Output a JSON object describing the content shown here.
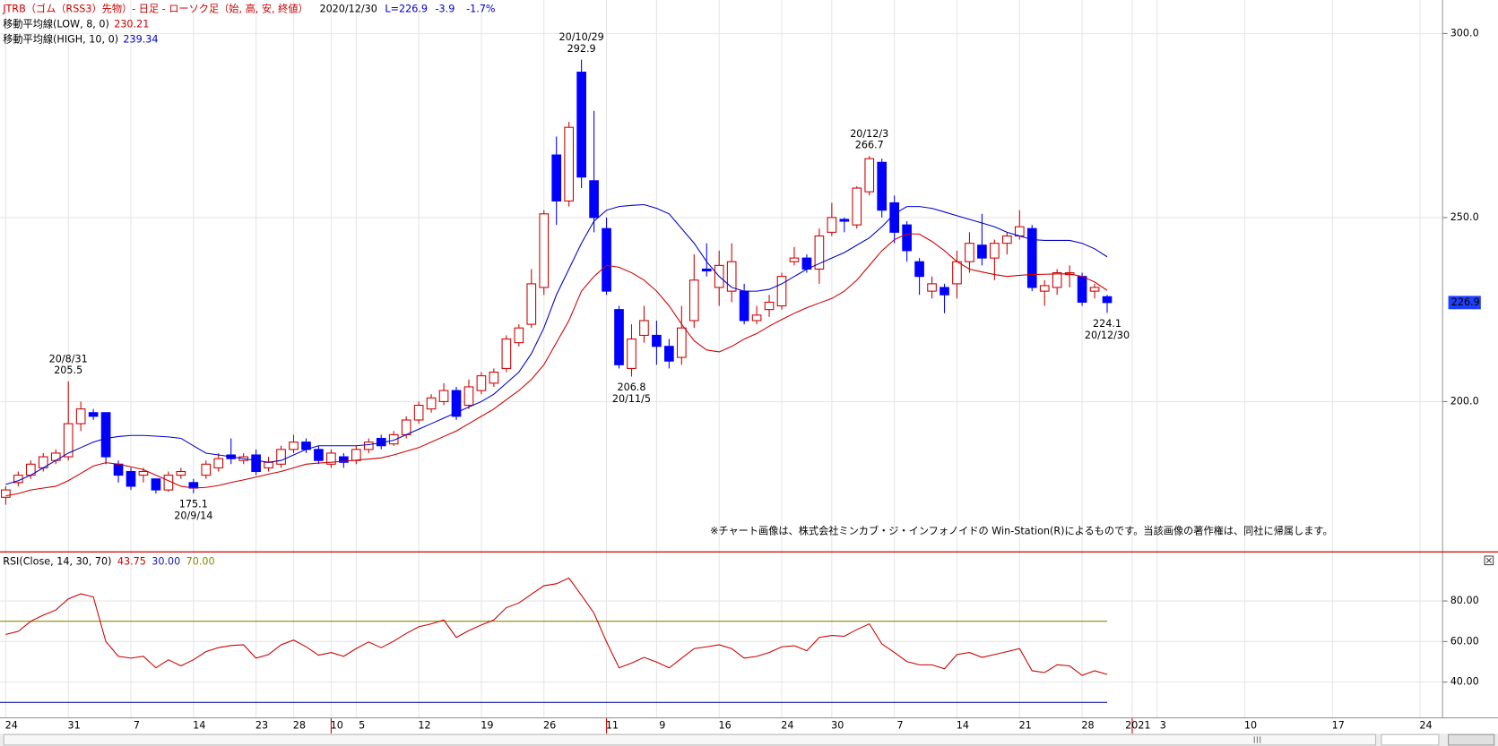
{
  "chart_data": [
    {
      "type": "candlestick",
      "title": "JTRB（ゴム（RSS3）先物）- 日足 - ローソク足（始, 高, 安, 終値）",
      "date": "2020/12/30",
      "last_label": "L=226.9",
      "change": "-3.9",
      "change_pct": "-1.7%",
      "copyright": "※チャート画像は、株式会社ミンカブ・ジ・インフォノイドの Win-Station(R)によるものです。当該画像の著作権は、同社に帰属します。",
      "xlim": [
        -0.458,
        114.8
      ],
      "xticks": [
        {
          "value": 0,
          "label": "24"
        },
        {
          "value": 5,
          "label": "31"
        },
        {
          "value": 10,
          "label": "7"
        },
        {
          "value": 15,
          "label": "14"
        },
        {
          "value": 20,
          "label": "23"
        },
        {
          "value": 23,
          "label": "28"
        },
        {
          "value": 26,
          "label": "10"
        },
        {
          "value": 28,
          "label": "5"
        },
        {
          "value": 33,
          "label": "12"
        },
        {
          "value": 38,
          "label": "19"
        },
        {
          "value": 43,
          "label": "26"
        },
        {
          "value": 48,
          "label": "11"
        },
        {
          "value": 52,
          "label": "9"
        },
        {
          "value": 57,
          "label": "16"
        },
        {
          "value": 62,
          "label": "24"
        },
        {
          "value": 66,
          "label": "30"
        },
        {
          "value": 71,
          "label": "7"
        },
        {
          "value": 76,
          "label": "14"
        },
        {
          "value": 81,
          "label": "21"
        },
        {
          "value": 86,
          "label": "28"
        },
        {
          "value": 90,
          "label": "2021"
        },
        {
          "value": 92,
          "label": "3"
        },
        {
          "value": 99,
          "label": "10"
        },
        {
          "value": 106,
          "label": "17"
        },
        {
          "value": 113,
          "label": "24"
        }
      ],
      "separators": [
        26,
        48,
        90
      ],
      "ylim": [
        159.3,
        309.1
      ],
      "yticks": [
        {
          "value": 200,
          "label": "200.0"
        },
        {
          "value": 250,
          "label": "250.0"
        },
        {
          "value": 300,
          "label": "300.0"
        }
      ],
      "grid": true,
      "up_color": "#cc0000",
      "down_color": "#0000ff",
      "open": [
        174,
        178,
        180,
        182,
        184,
        185,
        194,
        197,
        197,
        183,
        181,
        180,
        179,
        176,
        180,
        178,
        180,
        182,
        185.5,
        184,
        185.5,
        182,
        183,
        187,
        189,
        187,
        183,
        185,
        184,
        187,
        190,
        188.5,
        191,
        195,
        198,
        200,
        203,
        199,
        203,
        205,
        209,
        216,
        221,
        231,
        267,
        254.5,
        289.5,
        260,
        247,
        225,
        209,
        218,
        218,
        215,
        212,
        222,
        236,
        231,
        230,
        230,
        222,
        225,
        226,
        238,
        239,
        236,
        246,
        249.5,
        248,
        257,
        265,
        254,
        248,
        238,
        230,
        231,
        232,
        238,
        242.5,
        239,
        243,
        245,
        247,
        230,
        231,
        234.5,
        234,
        230,
        228.5
      ],
      "high": [
        177,
        181,
        184,
        186,
        187,
        205.5,
        200,
        198,
        197,
        184,
        182,
        182,
        179,
        181,
        182,
        179,
        184,
        186,
        190,
        186,
        187,
        185,
        188,
        191,
        190,
        188,
        187,
        186,
        188,
        190,
        191,
        192,
        196,
        200,
        202,
        205,
        204,
        206,
        208,
        209,
        218,
        221,
        236,
        252,
        272,
        276,
        292.9,
        279,
        250,
        226,
        221,
        226,
        222,
        217,
        226,
        240,
        243,
        241,
        243,
        232,
        226,
        229,
        235,
        242,
        240,
        247,
        254,
        250,
        258.5,
        266.7,
        266,
        256,
        249,
        239,
        234,
        232,
        241,
        246,
        251,
        244,
        246,
        252,
        248,
        233,
        236,
        237,
        235,
        232,
        229
      ],
      "low": [
        172,
        177,
        179,
        181,
        183,
        184,
        192,
        195,
        183,
        178,
        176,
        178,
        175,
        175.5,
        179,
        175.1,
        179,
        181,
        183,
        183,
        180,
        181,
        182,
        186,
        186,
        183,
        182,
        182,
        183,
        186,
        187,
        188,
        190,
        194,
        197,
        199,
        195,
        198,
        202,
        204,
        208,
        215,
        220,
        229,
        248,
        253,
        258,
        246,
        229,
        209,
        206.8,
        216,
        210,
        209,
        210,
        220,
        234,
        226,
        227,
        221,
        221,
        223,
        225,
        237,
        235,
        232,
        245,
        246,
        247,
        256,
        250,
        243,
        238,
        229,
        228,
        224,
        228,
        235,
        237,
        233,
        240,
        244,
        230,
        226,
        229,
        231,
        226,
        228,
        224.1
      ],
      "close": [
        176,
        180,
        183,
        185,
        186,
        194,
        198,
        196,
        185,
        180,
        177,
        181,
        176,
        180,
        181,
        176.5,
        183,
        184.5,
        184.5,
        185,
        181,
        183.5,
        187,
        189,
        187,
        184,
        186,
        183.5,
        187,
        189,
        188,
        191,
        195,
        199,
        201,
        203,
        196,
        204,
        207,
        208,
        217,
        220,
        232,
        251,
        254.5,
        274.5,
        261,
        250,
        230,
        210,
        217,
        222,
        215,
        211,
        220,
        233,
        235.5,
        237,
        238,
        222,
        223.5,
        227,
        234,
        239,
        236,
        245,
        250,
        249,
        258,
        266,
        252,
        246,
        241,
        234,
        232,
        229,
        238,
        243,
        239,
        243,
        245,
        247.5,
        231,
        231.5,
        235,
        235,
        227,
        231,
        226.9
      ],
      "series": [
        {
          "name": "移動平均線(LOW, 8, 0)",
          "color": "#cc0000",
          "last": 230.21,
          "values": [
            174.4,
            175,
            176,
            176.5,
            177,
            178.5,
            180.5,
            182.5,
            183.4,
            183,
            182.3,
            181.5,
            180,
            178.5,
            177,
            176.5,
            176.7,
            177.2,
            178,
            178.7,
            179.5,
            180.3,
            181,
            182,
            183,
            183.3,
            183.5,
            183.8,
            184.1,
            184.4,
            184.7,
            185.5,
            186.5,
            187.5,
            189,
            190.5,
            192,
            194,
            196,
            198,
            200.5,
            203,
            206,
            210,
            216,
            222,
            230,
            234,
            237,
            236.5,
            235,
            233,
            230,
            226,
            221,
            216.5,
            214,
            213.5,
            215,
            217,
            218.5,
            220.5,
            222.3,
            224,
            225.5,
            226.8,
            228,
            230,
            233,
            237,
            241,
            244,
            245.6,
            245.5,
            243.5,
            241,
            238,
            236,
            235.2,
            234.5,
            234,
            234.3,
            234.5,
            234.6,
            234.7,
            234.7,
            234,
            232.5,
            230.21
          ]
        },
        {
          "name": "移動平均線(HIGH, 10, 0)",
          "color": "#0000cc",
          "last": 239.34,
          "values": [
            177.5,
            178.5,
            180,
            182,
            184,
            186,
            187.5,
            189,
            190,
            190.5,
            190.8,
            190.8,
            190.6,
            190.4,
            190,
            188,
            186,
            185.5,
            185,
            184.5,
            184,
            183.5,
            184,
            185.5,
            187,
            188,
            188,
            188,
            188,
            188.3,
            188.8,
            189.5,
            191,
            192.5,
            194,
            195.5,
            197,
            198.5,
            200,
            202,
            205,
            208,
            213,
            220,
            229,
            236,
            243,
            249,
            252,
            253,
            253.3,
            253.5,
            252.5,
            251,
            247,
            243,
            238,
            234,
            231,
            230,
            230,
            230.5,
            232,
            234,
            236,
            237.5,
            239,
            240.5,
            242.5,
            244.5,
            247.5,
            251,
            253,
            253,
            252.5,
            251.5,
            250.5,
            249.5,
            248.5,
            247.5,
            246,
            245,
            244,
            243.8,
            243.8,
            243.8,
            243,
            241.5,
            239.34
          ]
        }
      ],
      "annotations": [
        {
          "index": 5,
          "date": "20/8/31",
          "value": 205.5,
          "position": "above"
        },
        {
          "index": 15,
          "date": "20/9/14",
          "value": 175.1,
          "position": "below"
        },
        {
          "index": 46,
          "date": "20/10/29",
          "value": 292.9,
          "position": "above"
        },
        {
          "index": 50,
          "date": "20/11/5",
          "value": 206.8,
          "position": "below"
        },
        {
          "index": 69,
          "date": "20/12/3",
          "value": 266.7,
          "position": "above"
        },
        {
          "index": 88,
          "date": "20/12/30",
          "value": 224.1,
          "position": "below"
        }
      ],
      "last_price": 226.9,
      "last_price_color": "#1f3fff"
    },
    {
      "type": "line",
      "title": "RSI(Close, 14, 30, 70)",
      "xlim": [
        -0.458,
        114.8
      ],
      "ylim": [
        22.6,
        103.5
      ],
      "yticks": [
        {
          "value": 40,
          "label": "40.00"
        },
        {
          "value": 60,
          "label": "60.00"
        },
        {
          "value": 80,
          "label": "80.00"
        }
      ],
      "grid": true,
      "series": [
        {
          "name": "RSI",
          "color": "#cc0000",
          "last": 43.75,
          "values": [
            63.5,
            65,
            70,
            73,
            75.5,
            81,
            83.5,
            82,
            60,
            52.7,
            51.8,
            52.7,
            47,
            51,
            48,
            51,
            55,
            57,
            58,
            58.4,
            51.8,
            53.6,
            58.4,
            60.7,
            57.4,
            53.2,
            54.6,
            52.7,
            56.5,
            59.8,
            57,
            60.2,
            64,
            67.3,
            68.7,
            70.6,
            62,
            65.4,
            68.2,
            70.6,
            76.7,
            79,
            83.3,
            87.5,
            88.5,
            91.3,
            82.8,
            74,
            59.8,
            47,
            49.4,
            52.2,
            49.9,
            47,
            51.8,
            56.5,
            57.4,
            58.4,
            56.5,
            51.8,
            52.7,
            54.6,
            57.4,
            57.9,
            55.5,
            62,
            63,
            62.6,
            65.9,
            68.7,
            58.8,
            54.6,
            50.1,
            48.5,
            48.5,
            46.6,
            53.6,
            54.6,
            52.2,
            53.6,
            55,
            56.5,
            45.6,
            44.7,
            48.5,
            48,
            43.3,
            45.6,
            43.75
          ]
        }
      ],
      "levels": [
        {
          "value": 30,
          "label": "30.00",
          "color": "#1a1aaa"
        },
        {
          "value": 70,
          "label": "70.00",
          "color": "#8a8a00"
        }
      ]
    }
  ]
}
